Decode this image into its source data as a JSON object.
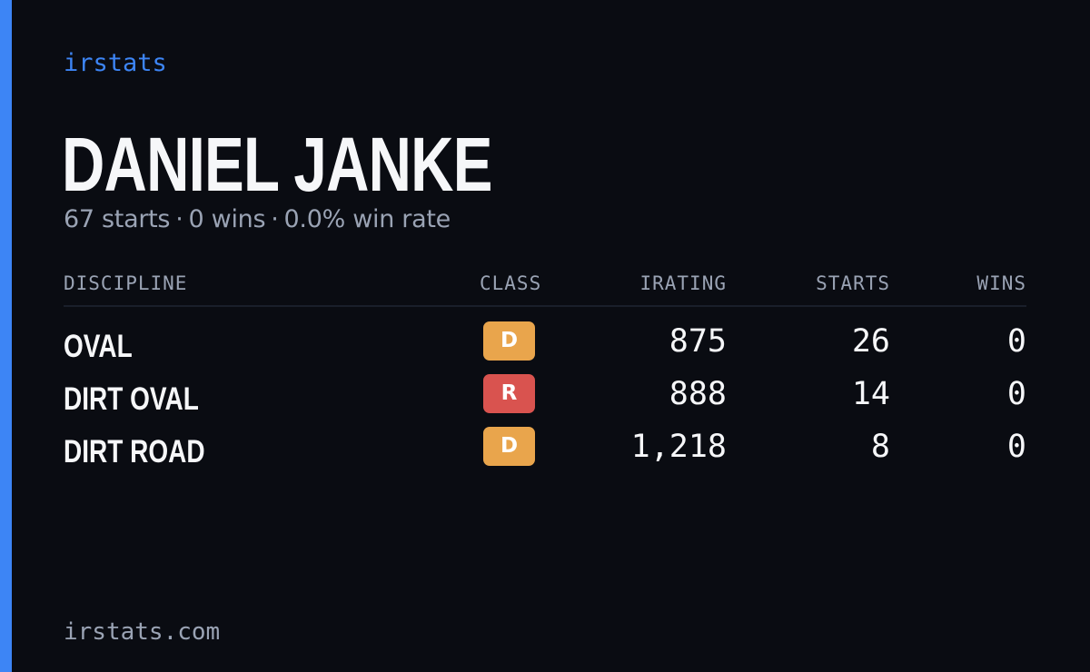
{
  "brand": "irstats",
  "driver": {
    "name": "DANIEL JANKE",
    "summary": {
      "starts": "67 starts",
      "wins": "0 wins",
      "win_rate": "0.0% win rate",
      "separator": "·"
    }
  },
  "table": {
    "headers": {
      "discipline": "DISCIPLINE",
      "class": "CLASS",
      "irating": "IRATING",
      "starts": "STARTS",
      "wins": "WINS"
    },
    "rows": [
      {
        "discipline": "OVAL",
        "class": "D",
        "class_color": "#e9a54c",
        "irating": "875",
        "starts": "26",
        "wins": "0"
      },
      {
        "discipline": "DIRT OVAL",
        "class": "R",
        "class_color": "#d9534f",
        "irating": "888",
        "starts": "14",
        "wins": "0"
      },
      {
        "discipline": "DIRT ROAD",
        "class": "D",
        "class_color": "#e9a54c",
        "irating": "1,218",
        "starts": "8",
        "wins": "0"
      }
    ]
  },
  "footer": "irstats.com",
  "colors": {
    "background": "#0a0c12",
    "accent": "#3d85f5",
    "text_primary": "#f6f7f9",
    "text_muted": "#9aa3b4"
  }
}
